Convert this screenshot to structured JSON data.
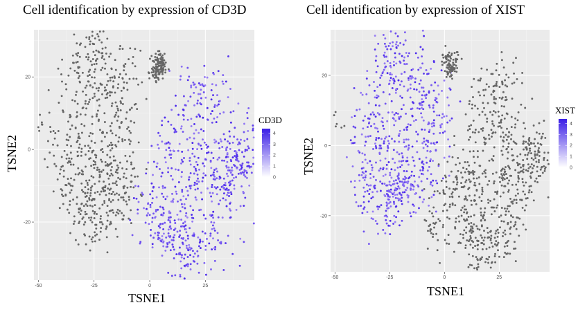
{
  "chart_data": [
    {
      "type": "scatter",
      "title": "Cell identification by expression of CD3D",
      "xlabel": "TSNE1",
      "ylabel": "TSNE2",
      "xlim": [
        -52,
        47
      ],
      "ylim": [
        -36,
        33
      ],
      "x_ticks": [
        -50,
        -25,
        0,
        25
      ],
      "y_ticks": [
        -20,
        0,
        20
      ],
      "grid": true,
      "legend": {
        "title": "CD3D",
        "placement": "right",
        "range": [
          0,
          4.4
        ],
        "ticks": [
          0,
          1,
          2,
          3,
          4
        ],
        "low_color": "#ffffff",
        "high_color": "#3a1ee6"
      },
      "series": [
        {
          "group": "low",
          "color": "#666666",
          "points": [
            [
              -49,
              8
            ],
            [
              -49,
              7
            ],
            [
              -48,
              6
            ],
            [
              -46,
              5
            ],
            [
              -28,
              28
            ],
            [
              -24,
              29
            ],
            [
              -30,
              22
            ],
            [
              -22,
              24
            ],
            [
              -35,
              14
            ],
            [
              -25,
              14
            ],
            [
              -15,
              14
            ],
            [
              -30,
              6
            ],
            [
              -20,
              6
            ],
            [
              -12,
              6
            ],
            [
              -36,
              -2
            ],
            [
              -25,
              -2
            ],
            [
              -14,
              -2
            ],
            [
              -33,
              -8
            ],
            [
              -22,
              -8
            ],
            [
              -12,
              -9
            ],
            [
              -31,
              -15
            ],
            [
              -20,
              -14
            ],
            [
              -29,
              -18
            ],
            [
              -26,
              -20
            ],
            [
              -20,
              -18
            ],
            [
              -18,
              -3
            ],
            [
              -16,
              20
            ],
            [
              -10,
              19
            ],
            [
              -12,
              -12
            ],
            [
              -38,
              0
            ],
            [
              -28,
              -10
            ],
            [
              3,
              24
            ],
            [
              4,
              22
            ],
            [
              5,
              25
            ],
            [
              2,
              21
            ],
            [
              5,
              23
            ]
          ]
        },
        {
          "group": "high",
          "color": "#6a44ee",
          "points": [
            [
              17,
              15
            ],
            [
              25,
              16
            ],
            [
              20,
              8
            ],
            [
              28,
              14
            ],
            [
              10,
              4
            ],
            [
              22,
              0
            ],
            [
              32,
              -3
            ],
            [
              38,
              -10
            ],
            [
              40,
              -3
            ],
            [
              43,
              -1
            ],
            [
              35,
              -12
            ],
            [
              8,
              -5
            ],
            [
              22,
              -5
            ],
            [
              0,
              -12
            ],
            [
              5,
              -15
            ],
            [
              14,
              -10
            ],
            [
              3,
              -20
            ],
            [
              10,
              -20
            ],
            [
              16,
              -18
            ],
            [
              6,
              -25
            ],
            [
              14,
              -26
            ],
            [
              20,
              -25
            ],
            [
              18,
              -29
            ],
            [
              14,
              -32
            ],
            [
              26,
              -24
            ],
            [
              33,
              -23
            ],
            [
              38,
              2
            ],
            [
              44,
              -4
            ],
            [
              30,
              -8
            ],
            [
              36,
              -6
            ]
          ]
        }
      ]
    },
    {
      "type": "scatter",
      "title": "Cell identification by expression of XIST",
      "xlabel": "TSNE1",
      "ylabel": "TSNE2",
      "xlim": [
        -52,
        48
      ],
      "ylim": [
        -36,
        33
      ],
      "x_ticks": [
        -50,
        -25,
        0,
        25
      ],
      "y_ticks": [
        -20,
        0,
        20
      ],
      "grid": true,
      "legend": {
        "title": "XIST",
        "placement": "right",
        "range": [
          0,
          4.4
        ],
        "ticks": [
          0,
          1,
          2,
          3,
          4
        ],
        "low_color": "#ffffff",
        "high_color": "#3a1ee6"
      },
      "series": [
        {
          "group": "high",
          "color": "#6a44ee",
          "points": [
            [
              -25,
              29
            ],
            [
              -24,
              27
            ],
            [
              -22,
              23
            ],
            [
              -30,
              18
            ],
            [
              -18,
              18
            ],
            [
              -10,
              20
            ],
            [
              -35,
              10
            ],
            [
              -25,
              10
            ],
            [
              -12,
              10
            ],
            [
              -6,
              8
            ],
            [
              -32,
              2
            ],
            [
              -20,
              2
            ],
            [
              -8,
              2
            ],
            [
              -4,
              6
            ],
            [
              -36,
              -5
            ],
            [
              -22,
              -5
            ],
            [
              -12,
              -4
            ],
            [
              -33,
              -12
            ],
            [
              -25,
              -13
            ],
            [
              -16,
              -12
            ],
            [
              -30,
              -16
            ],
            [
              -24,
              -17
            ],
            [
              -28,
              -18
            ],
            [
              -20,
              -10
            ],
            [
              -14,
              -15
            ],
            [
              -38,
              -2
            ],
            [
              -6,
              14
            ],
            [
              -8,
              -8
            ]
          ]
        },
        {
          "group": "low",
          "color": "#666666",
          "points": [
            [
              -48,
              8
            ],
            [
              -49,
              7
            ],
            [
              -47,
              6
            ],
            [
              1,
              25
            ],
            [
              3,
              22
            ],
            [
              4,
              24
            ],
            [
              2,
              21
            ],
            [
              22,
              17
            ],
            [
              28,
              18
            ],
            [
              18,
              12
            ],
            [
              25,
              10
            ],
            [
              30,
              5
            ],
            [
              14,
              2
            ],
            [
              24,
              -2
            ],
            [
              34,
              0
            ],
            [
              40,
              -1
            ],
            [
              42,
              -5
            ],
            [
              36,
              -10
            ],
            [
              28,
              -12
            ],
            [
              8,
              -7
            ],
            [
              16,
              -10
            ],
            [
              -2,
              -13
            ],
            [
              6,
              -15
            ],
            [
              12,
              -20
            ],
            [
              20,
              -18
            ],
            [
              4,
              -24
            ],
            [
              14,
              -24
            ],
            [
              22,
              -26
            ],
            [
              18,
              -30
            ],
            [
              26,
              -28
            ],
            [
              14,
              -32
            ],
            [
              -4,
              -23
            ],
            [
              32,
              -22
            ],
            [
              38,
              -6
            ],
            [
              44,
              -3
            ],
            [
              30,
              -16
            ],
            [
              10,
              -12
            ],
            [
              28,
              -4
            ]
          ]
        }
      ]
    }
  ]
}
